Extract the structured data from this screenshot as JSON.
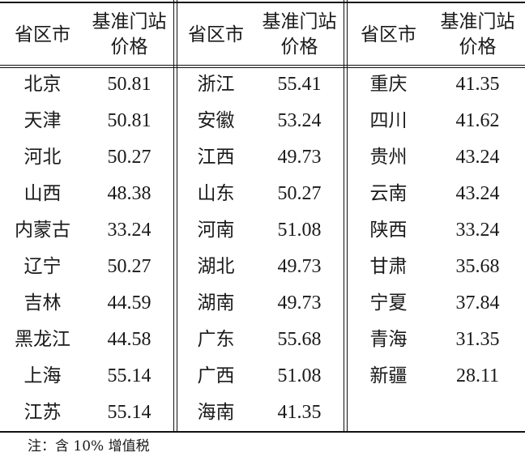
{
  "headers": {
    "region": "省区市",
    "price_line1": "基准门站",
    "price_line2": "价格"
  },
  "groups": [
    {
      "rows": [
        {
          "region": "北京",
          "price": "50.81"
        },
        {
          "region": "天津",
          "price": "50.81"
        },
        {
          "region": "河北",
          "price": "50.27"
        },
        {
          "region": "山西",
          "price": "48.38"
        },
        {
          "region": "内蒙古",
          "price": "33.24"
        },
        {
          "region": "辽宁",
          "price": "50.27"
        },
        {
          "region": "吉林",
          "price": "44.59"
        },
        {
          "region": "黑龙江",
          "price": "44.58"
        },
        {
          "region": "上海",
          "price": "55.14"
        },
        {
          "region": "江苏",
          "price": "55.14"
        }
      ]
    },
    {
      "rows": [
        {
          "region": "浙江",
          "price": "55.41"
        },
        {
          "region": "安徽",
          "price": "53.24"
        },
        {
          "region": "江西",
          "price": "49.73"
        },
        {
          "region": "山东",
          "price": "50.27"
        },
        {
          "region": "河南",
          "price": "51.08"
        },
        {
          "region": "湖北",
          "price": "49.73"
        },
        {
          "region": "湖南",
          "price": "49.73"
        },
        {
          "region": "广东",
          "price": "55.68"
        },
        {
          "region": "广西",
          "price": "51.08"
        },
        {
          "region": "海南",
          "price": "41.35"
        }
      ]
    },
    {
      "rows": [
        {
          "region": "重庆",
          "price": "41.35"
        },
        {
          "region": "四川",
          "price": "41.62"
        },
        {
          "region": "贵州",
          "price": "43.24"
        },
        {
          "region": "云南",
          "price": "43.24"
        },
        {
          "region": "陕西",
          "price": "33.24"
        },
        {
          "region": "甘肃",
          "price": "35.68"
        },
        {
          "region": "宁夏",
          "price": "37.84"
        },
        {
          "region": "青海",
          "price": "31.35"
        },
        {
          "region": "新疆",
          "price": "28.11"
        }
      ]
    }
  ],
  "note": "注：含 10% 增值税"
}
